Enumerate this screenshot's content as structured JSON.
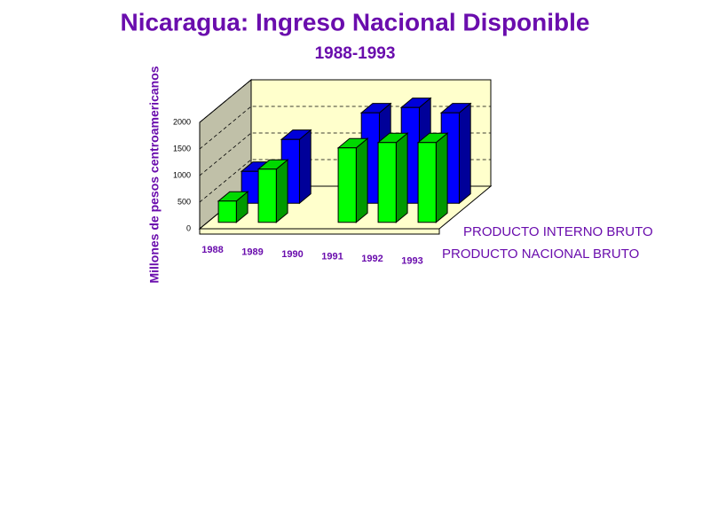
{
  "chart_data": {
    "type": "bar3d",
    "title": "Nicaragua: Ingreso Nacional Disponible",
    "subtitle": "1988-1993",
    "y_label": "Millones de pesos centroamericanos",
    "categories": [
      "1988",
      "1989",
      "1990",
      "1991",
      "1992",
      "1993"
    ],
    "series": [
      {
        "name": "PRODUCTO INTERNO BRUTO",
        "color": "#0000ff",
        "values": [
          600,
          1200,
          null,
          1700,
          1800,
          1700
        ]
      },
      {
        "name": "PRODUCTO NACIONAL BRUTO",
        "color": "#00ff00",
        "values": [
          400,
          1000,
          null,
          1400,
          1500,
          1500
        ]
      }
    ],
    "ylim": [
      0,
      2000
    ],
    "yticks": [
      0,
      500,
      1000,
      1500,
      2000
    ],
    "grid": true
  }
}
